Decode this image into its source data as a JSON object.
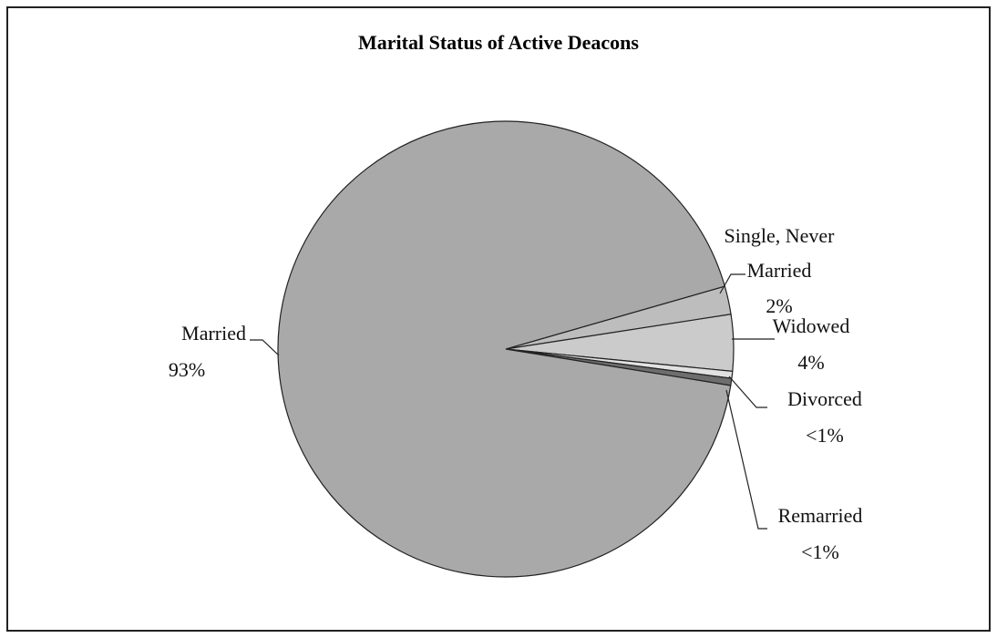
{
  "chart_data": {
    "type": "pie",
    "title": "Marital Status of Active Deacons",
    "categories": [
      "Married",
      "Single, Never Married",
      "Widowed",
      "Divorced",
      "Remarried"
    ],
    "values": [
      93,
      2,
      4,
      0.5,
      0.5
    ],
    "value_labels": [
      "93%",
      "2%",
      "4%",
      "<1%",
      "<1%"
    ],
    "colors": [
      "#a9a9a9",
      "#bdbdbd",
      "#cbcbcb",
      "#e2e2e2",
      "#6e6e6e"
    ]
  }
}
